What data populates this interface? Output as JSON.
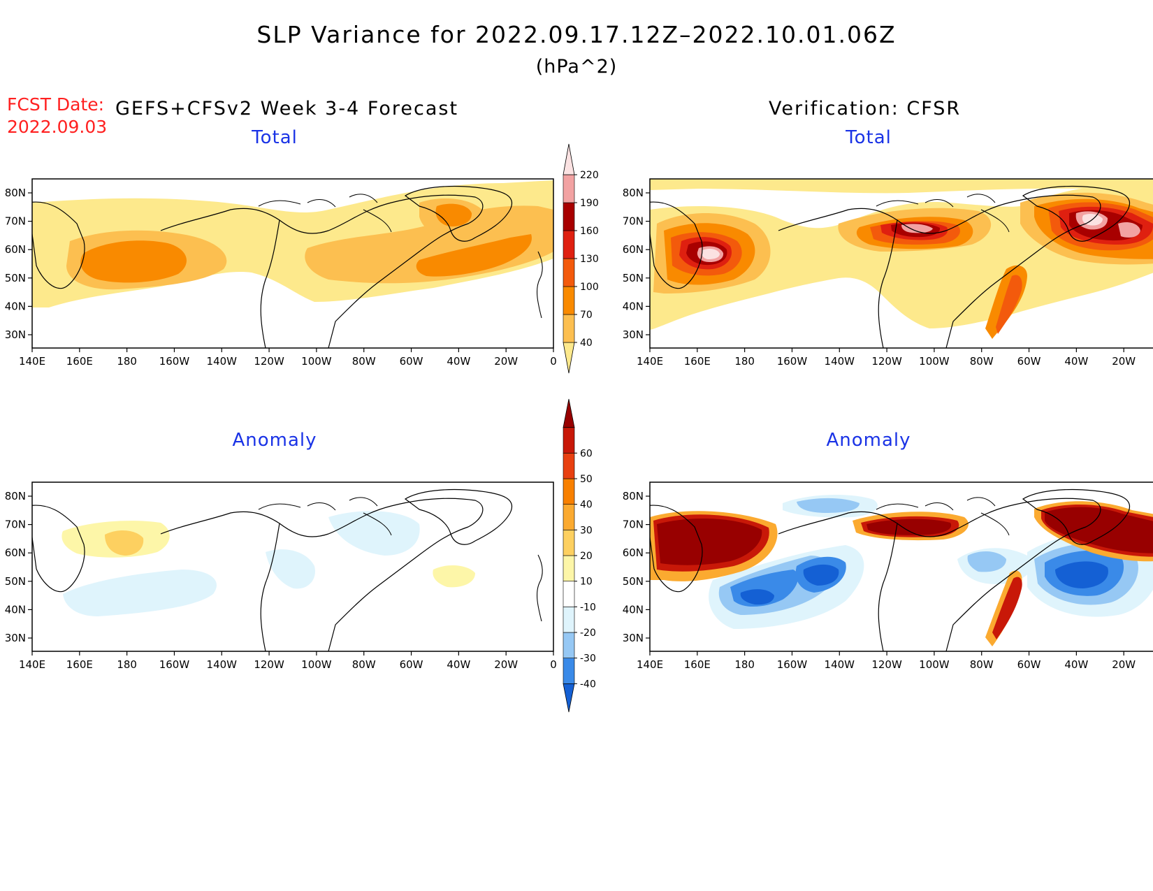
{
  "header": {
    "title": "SLP Variance for 2022.09.17.12Z–2022.10.01.06Z",
    "units": "(hPa^2)",
    "fcst_label": "FCST Date:",
    "fcst_date": "2022.09.03",
    "left_header": "GEFS+CFSv2 Week 3-4 Forecast",
    "right_header": "Verification: CFSR"
  },
  "panels": {
    "forecast_total": {
      "title": "Total"
    },
    "verification_total": {
      "title": "Total"
    },
    "forecast_anomaly": {
      "title": "Anomaly"
    },
    "verification_anomaly": {
      "title": "Anomaly"
    }
  },
  "axes": {
    "lat_labels": [
      "80N",
      "70N",
      "60N",
      "50N",
      "40N",
      "30N"
    ],
    "lon_labels": [
      "140E",
      "160E",
      "180",
      "160W",
      "140W",
      "120W",
      "100W",
      "80W",
      "60W",
      "40W",
      "20W",
      "0"
    ]
  },
  "colorbars": {
    "total": {
      "levels": [
        "40",
        "70",
        "100",
        "130",
        "160",
        "190",
        "220"
      ],
      "colors": [
        "#fde98c",
        "#fcbf50",
        "#f98a00",
        "#f35a0c",
        "#df2010",
        "#a80000",
        "#f2a2a2",
        "#fbe2e2"
      ]
    },
    "anomaly": {
      "levels": [
        "-40",
        "-30",
        "-20",
        "-10",
        "10",
        "20",
        "30",
        "40",
        "50",
        "60"
      ],
      "colors": [
        "#1460d4",
        "#3a8ae8",
        "#96c8f4",
        "#dff4fc",
        "#ffffff",
        "#fdf6a8",
        "#fdd060",
        "#fbaa30",
        "#f88000",
        "#e84010",
        "#c81808",
        "#980000"
      ]
    }
  }
}
